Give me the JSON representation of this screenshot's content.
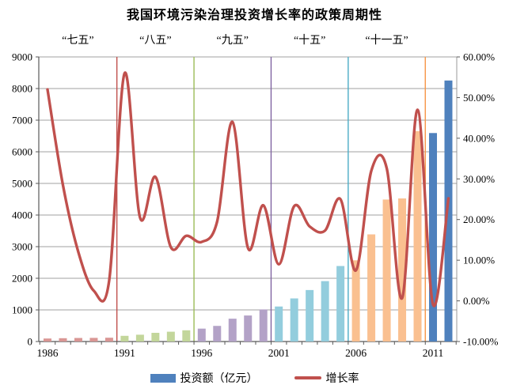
{
  "chart_data": {
    "type": "bar+line",
    "title": "我国环境污染治理投资增长率的政策周期性",
    "grid_color": "#808080",
    "axis_color": "#595959",
    "x_axis": {
      "years_start": 1986,
      "years_end": 2012,
      "tick_label_years": [
        1986,
        1991,
        1996,
        2001,
        2006,
        2011
      ],
      "tick_labels": [
        "1986",
        "1991",
        "1996",
        "2001",
        "2006",
        "2011"
      ]
    },
    "left_axis": {
      "min": 0,
      "max": 9000,
      "step": 1000,
      "tick_labels": [
        "0",
        "1000",
        "2000",
        "3000",
        "4000",
        "5000",
        "6000",
        "7000",
        "8000",
        "9000"
      ]
    },
    "right_axis": {
      "min": -10,
      "max": 60,
      "step": 10,
      "tick_labels": [
        "-10.00%",
        "0.00%",
        "10.00%",
        "20.00%",
        "30.00%",
        "40.00%",
        "50.00%",
        "60.00%"
      ]
    },
    "periods": [
      {
        "label": "“七五”",
        "start": 1986,
        "end": 1990,
        "bar_color": "#d99694",
        "divider_color": "#c0504d"
      },
      {
        "label": "“八五”",
        "start": 1991,
        "end": 1995,
        "bar_color": "#c3d69b",
        "divider_color": "#9bbb59"
      },
      {
        "label": "“九五”",
        "start": 1996,
        "end": 2000,
        "bar_color": "#b3a2c7",
        "divider_color": "#8064a2"
      },
      {
        "label": "“十五”",
        "start": 2001,
        "end": 2005,
        "bar_color": "#93cddd",
        "divider_color": "#4bacc6"
      },
      {
        "label": "“十一五”",
        "start": 2006,
        "end": 2010,
        "bar_color": "#fac090",
        "divider_color": "#f79646"
      },
      {
        "label": "",
        "start": 2011,
        "end": 2012,
        "bar_color": "#4f81bd",
        "divider_color": null
      }
    ],
    "series": [
      {
        "name": "投资额（亿元）",
        "type": "bar",
        "axis": "left",
        "color": "#4f81bd",
        "values": [
          95,
          105,
          112,
          115,
          120,
          180,
          215,
          275,
          310,
          355,
          408,
          494,
          722,
          823,
          1015,
          1107,
          1363,
          1628,
          1910,
          2388,
          2568,
          3388,
          4490,
          4525,
          6654,
          6593,
          8254
        ]
      },
      {
        "name": "增长率",
        "type": "line",
        "axis": "right",
        "color": "#c0504d",
        "values_pct": [
          52.0,
          28.5,
          12.0,
          2.5,
          5.0,
          56.0,
          20.5,
          30.5,
          13.2,
          16.0,
          14.5,
          19.5,
          44.0,
          13.0,
          23.5,
          9.0,
          23.3,
          18.3,
          17.3,
          25.0,
          7.5,
          32.0,
          32.6,
          0.7,
          47.0,
          -0.9,
          25.2
        ]
      }
    ]
  }
}
